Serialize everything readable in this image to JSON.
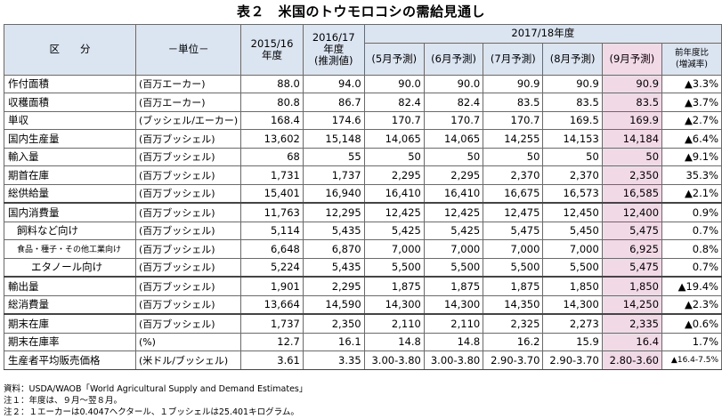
{
  "title": "表２　米国のトウモロコシの需給見通し",
  "header": {
    "kubun": "区　　分",
    "unit": "－単位－",
    "y2015": "2015/16\n年度",
    "y2016": "2016/17\n年度\n(推測値)",
    "y2017": "2017/18年度",
    "may": "(5月予測)",
    "jun": "(6月予測)",
    "jul": "(7月予測)",
    "aug": "(8月予測)",
    "sep": "(9月予測)",
    "yoy": "前年度比\n(増減率)"
  },
  "rows": [
    {
      "item": "作付面積",
      "unit": "(百万エーカー)",
      "v": [
        "88.0",
        "94.0",
        "90.0",
        "90.0",
        "90.9",
        "90.9",
        "90.9"
      ],
      "yoy": "▲3.3%"
    },
    {
      "item": "収穫面積",
      "unit": "(百万エーカー)",
      "v": [
        "80.8",
        "86.7",
        "82.4",
        "82.4",
        "83.5",
        "83.5",
        "83.5"
      ],
      "yoy": "▲3.7%"
    },
    {
      "item": "単収",
      "unit": "(ブッシェル/エーカー)",
      "v": [
        "168.4",
        "174.6",
        "170.7",
        "170.7",
        "170.7",
        "169.5",
        "169.9"
      ],
      "yoy": "▲2.7%"
    },
    {
      "item": "国内生産量",
      "unit": "(百万ブッシェル)",
      "v": [
        "13,602",
        "15,148",
        "14,065",
        "14,065",
        "14,255",
        "14,153",
        "14,184"
      ],
      "yoy": "▲6.4%"
    },
    {
      "item": "輸入量",
      "unit": "(百万ブッシェル)",
      "v": [
        "68",
        "55",
        "50",
        "50",
        "50",
        "50",
        "50"
      ],
      "yoy": "▲9.1%"
    },
    {
      "item": "期首在庫",
      "unit": "(百万ブッシェル)",
      "v": [
        "1,731",
        "1,737",
        "2,295",
        "2,295",
        "2,370",
        "2,370",
        "2,350"
      ],
      "yoy": "35.3%"
    },
    {
      "item": "総供給量",
      "unit": "(百万ブッシェル)",
      "v": [
        "15,401",
        "16,940",
        "16,410",
        "16,410",
        "16,675",
        "16,573",
        "16,585"
      ],
      "yoy": "▲2.1%"
    },
    {
      "item": "国内消費量",
      "unit": "(百万ブッシェル)",
      "v": [
        "11,763",
        "12,295",
        "12,425",
        "12,425",
        "12,475",
        "12,450",
        "12,400"
      ],
      "yoy": "0.9%"
    },
    {
      "item": "飼料など向け",
      "unit": "(百万ブッシェル)",
      "v": [
        "5,114",
        "5,435",
        "5,425",
        "5,425",
        "5,475",
        "5,450",
        "5,475"
      ],
      "yoy": "0.7%"
    },
    {
      "item": "食品・種子・その他工業向け",
      "unit": "(百万ブッシェル)",
      "v": [
        "6,648",
        "6,870",
        "7,000",
        "7,000",
        "7,000",
        "7,000",
        "6,925"
      ],
      "yoy": "0.8%"
    },
    {
      "item": "エタノール向け",
      "unit": "(百万ブッシェル)",
      "v": [
        "5,224",
        "5,435",
        "5,500",
        "5,500",
        "5,500",
        "5,500",
        "5,475"
      ],
      "yoy": "0.7%"
    },
    {
      "item": "輸出量",
      "unit": "(百万ブッシェル)",
      "v": [
        "1,901",
        "2,295",
        "1,875",
        "1,875",
        "1,875",
        "1,850",
        "1,850"
      ],
      "yoy": "▲19.4%"
    },
    {
      "item": "総消費量",
      "unit": "(百万ブッシェル)",
      "v": [
        "13,664",
        "14,590",
        "14,300",
        "14,300",
        "14,350",
        "14,300",
        "14,250"
      ],
      "yoy": "▲2.3%"
    },
    {
      "item": "期末在庫",
      "unit": "(百万ブッシェル)",
      "v": [
        "1,737",
        "2,350",
        "2,110",
        "2,110",
        "2,325",
        "2,273",
        "2,335"
      ],
      "yoy": "▲0.6%"
    },
    {
      "item": "期末在庫率",
      "unit": "(%)",
      "v": [
        "12.7",
        "16.1",
        "14.8",
        "14.8",
        "16.2",
        "15.9",
        "16.4"
      ],
      "yoy": "1.7%"
    },
    {
      "item": "生産者平均販売価格",
      "unit": "(米ドル/ブッシェル)",
      "v": [
        "3.61",
        "3.35",
        "3.00-3.80",
        "3.00-3.80",
        "2.90-3.70",
        "2.90-3.70",
        "2.80-3.60"
      ],
      "yoy": "▲16.4-7.5%"
    }
  ],
  "notes": [
    "資料：USDA/WAOB「World Agricultural Supply and Demand Estimates」",
    "注１：年度は、９月～翌８月。",
    "注２：１エーカーは0.4047ヘクタール、１ブッシェルは25.401キログラム。"
  ],
  "colors": {
    "header_bg": "#dbe5f1",
    "sep_column_bg": "#f1d9e6"
  }
}
